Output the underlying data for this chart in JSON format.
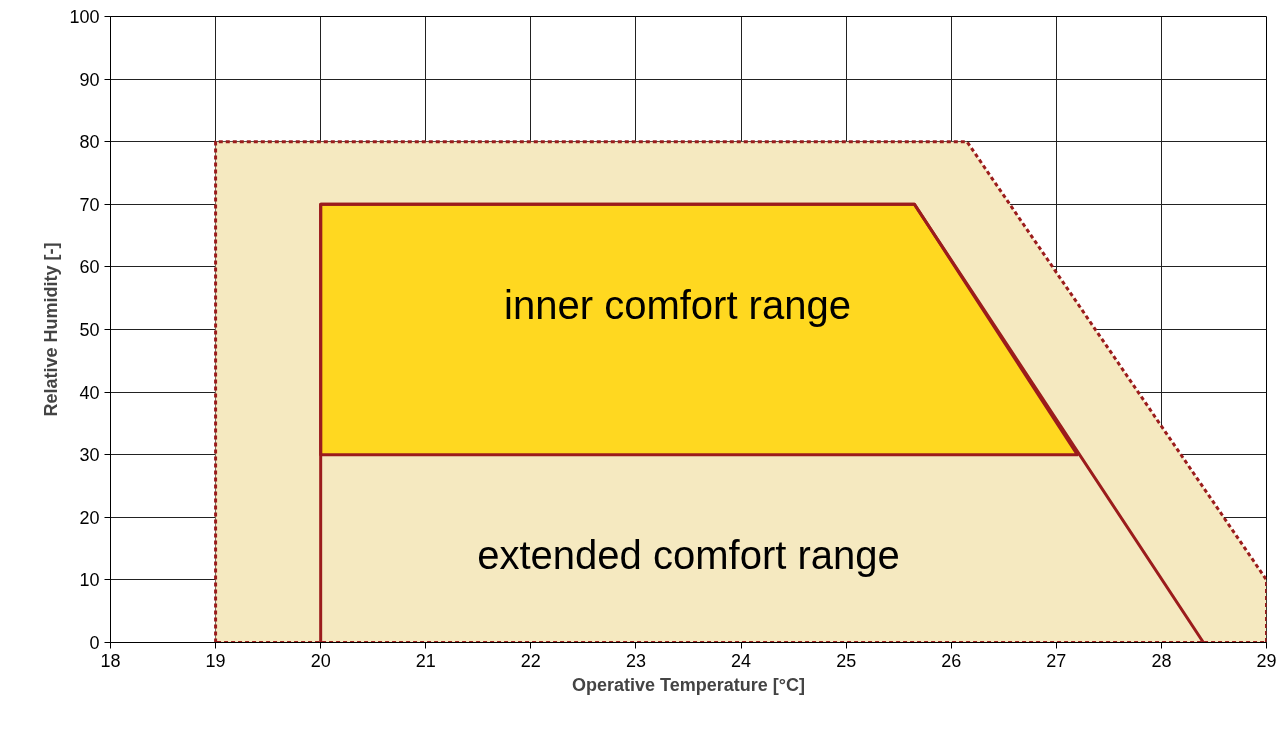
{
  "chart_data": {
    "type": "line",
    "xlabel": "Operative Temperature [°C]",
    "ylabel": "Relative Humidity [-]",
    "xlim": [
      18,
      29
    ],
    "xticks": [
      18,
      19,
      20,
      21,
      22,
      23,
      24,
      25,
      26,
      27,
      28,
      29
    ],
    "ylim": [
      0,
      100
    ],
    "yticks": [
      0,
      10,
      20,
      30,
      40,
      50,
      60,
      70,
      80,
      90,
      100
    ],
    "grid": true,
    "series": [
      {
        "type": "area",
        "color": "#f5e9c0",
        "line_style": "dashed",
        "x": [
          19,
          19,
          26.15,
          29,
          29
        ],
        "values": [
          0,
          80,
          80,
          10,
          0
        ]
      },
      {
        "type": "area",
        "color": "#ffd820",
        "line_style": "solid",
        "x": [
          20,
          20,
          25.65,
          27.2
        ],
        "values": [
          30,
          70,
          70,
          30
        ]
      },
      {
        "color": "#9b1c1c",
        "line_style": "solid",
        "x": [
          20,
          20,
          25.65,
          28.4
        ],
        "values": [
          0,
          70,
          70,
          0
        ]
      }
    ],
    "annotations": [
      "inner comfort range",
      "extended comfort range"
    ]
  }
}
